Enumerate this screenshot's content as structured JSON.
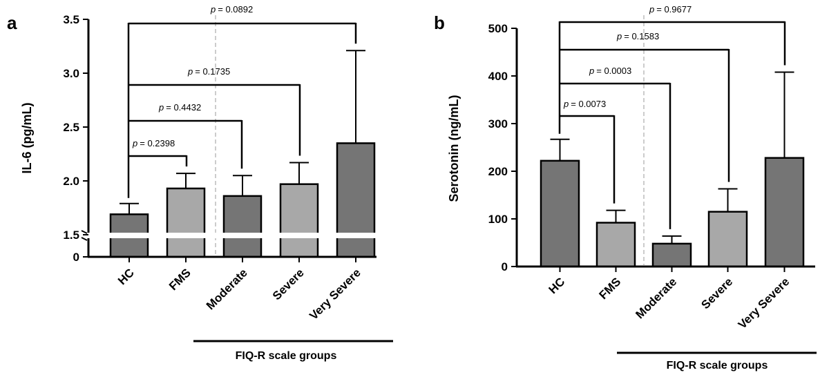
{
  "chart_data": [
    {
      "panel": "a",
      "type": "bar",
      "ylabel": "IL-6 (pg/mL)",
      "ylim": [
        0,
        3.5
      ],
      "axis_break": true,
      "yticks": [
        "0",
        "1.5",
        "2.0",
        "2.5",
        "3.0",
        "3.5"
      ],
      "categories": [
        "HC",
        "FMS",
        "Moderate",
        "Severe",
        "Very Severe"
      ],
      "values": [
        1.69,
        1.93,
        1.86,
        1.97,
        2.35
      ],
      "errors": [
        0.1,
        0.14,
        0.19,
        0.2,
        0.86
      ],
      "bar_colors": [
        "#757575",
        "#a8a8a8",
        "#757575",
        "#a8a8a8",
        "#757575"
      ],
      "group_label": "FIQ-R scale groups",
      "comparisons": [
        {
          "from": "HC",
          "to": "FMS",
          "p": "= 0.2398"
        },
        {
          "from": "HC",
          "to": "Moderate",
          "p": "= 0.4432"
        },
        {
          "from": "HC",
          "to": "Severe",
          "p": "= 0.1735"
        },
        {
          "from": "HC",
          "to": "Very Severe",
          "p": "= 0.0892"
        }
      ]
    },
    {
      "panel": "b",
      "type": "bar",
      "ylabel": "Serotonin (ng/mL)",
      "ylim": [
        0,
        500
      ],
      "yticks": [
        "0",
        "100",
        "200",
        "300",
        "400",
        "500"
      ],
      "categories": [
        "HC",
        "FMS",
        "Moderate",
        "Severe",
        "Very Severe"
      ],
      "values": [
        222,
        92,
        48,
        115,
        228
      ],
      "errors": [
        45,
        26,
        16,
        48,
        180
      ],
      "bar_colors": [
        "#757575",
        "#a8a8a8",
        "#757575",
        "#a8a8a8",
        "#757575"
      ],
      "group_label": "FIQ-R scale groups",
      "comparisons": [
        {
          "from": "HC",
          "to": "FMS",
          "p": "= 0.0073"
        },
        {
          "from": "HC",
          "to": "Moderate",
          "p": "= 0.0003"
        },
        {
          "from": "HC",
          "to": "Severe",
          "p": "= 0.1583"
        },
        {
          "from": "HC",
          "to": "Very Severe",
          "p": "= 0.9677"
        }
      ]
    }
  ],
  "p_symbol": "p"
}
